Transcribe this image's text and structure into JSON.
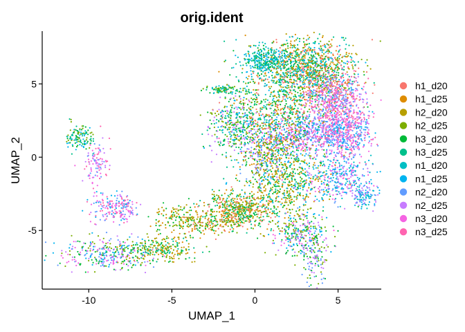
{
  "chart_data": {
    "type": "scatter",
    "title": "orig.ident",
    "xlabel": "UMAP_1",
    "ylabel": "UMAP_2",
    "xlim": [
      -12.8,
      7.6
    ],
    "ylim": [
      -9.0,
      8.6
    ],
    "xticks": [
      -10,
      -5,
      0,
      5
    ],
    "yticks": [
      -5,
      0,
      5
    ],
    "grid": false,
    "legend_position": "right",
    "series": [
      {
        "name": "h1_d20",
        "color": "#F8766D"
      },
      {
        "name": "h1_d25",
        "color": "#DE8C00"
      },
      {
        "name": "h2_d20",
        "color": "#B79F00"
      },
      {
        "name": "h2_d25",
        "color": "#7CAE00"
      },
      {
        "name": "h3_d20",
        "color": "#00BA38"
      },
      {
        "name": "h3_d25",
        "color": "#00C08B"
      },
      {
        "name": "n1_d20",
        "color": "#00BFC4"
      },
      {
        "name": "n1_d25",
        "color": "#00B4F0"
      },
      {
        "name": "n2_d20",
        "color": "#619CFF"
      },
      {
        "name": "n2_d25",
        "color": "#C77CFF"
      },
      {
        "name": "n3_d20",
        "color": "#F564E3"
      },
      {
        "name": "n3_d25",
        "color": "#FF64B0"
      }
    ],
    "clusters": [
      {
        "cx": 3.0,
        "cy": 6.0,
        "sx": 1.5,
        "sy": 1.1,
        "n": 1300,
        "mix": [
          0,
          1,
          2,
          3,
          4,
          5,
          6,
          7
        ]
      },
      {
        "cx": 0.6,
        "cy": 6.6,
        "sx": 0.7,
        "sy": 0.5,
        "n": 260,
        "mix": [
          4,
          5,
          6,
          7
        ]
      },
      {
        "cx": 4.6,
        "cy": 4.0,
        "sx": 1.0,
        "sy": 1.0,
        "n": 600,
        "mix": [
          8,
          9,
          10,
          11,
          0
        ]
      },
      {
        "cx": 5.5,
        "cy": 1.8,
        "sx": 0.8,
        "sy": 1.2,
        "n": 520,
        "mix": [
          8,
          9,
          10,
          11,
          7
        ]
      },
      {
        "cx": 3.0,
        "cy": 1.6,
        "sx": 1.6,
        "sy": 0.7,
        "n": 650,
        "mix": [
          8,
          9,
          10,
          7,
          11
        ]
      },
      {
        "cx": 1.3,
        "cy": 3.0,
        "sx": 1.5,
        "sy": 1.1,
        "n": 500,
        "mix": [
          0,
          1,
          3,
          4,
          5,
          6
        ]
      },
      {
        "cx": -1.2,
        "cy": 2.0,
        "sx": 0.8,
        "sy": 1.1,
        "n": 320,
        "mix": [
          3,
          4,
          5,
          7,
          9
        ]
      },
      {
        "cx": 1.8,
        "cy": -1.5,
        "sx": 1.3,
        "sy": 1.6,
        "n": 700,
        "mix": [
          1,
          2,
          3,
          4,
          5,
          7
        ]
      },
      {
        "cx": 0.6,
        "cy": 0.2,
        "sx": 0.7,
        "sy": 0.9,
        "n": 260,
        "mix": [
          1,
          3,
          4,
          8,
          9
        ]
      },
      {
        "cx": 5.0,
        "cy": -1.5,
        "sx": 1.1,
        "sy": 0.8,
        "n": 320,
        "mix": [
          6,
          7,
          8,
          9,
          10
        ]
      },
      {
        "cx": 6.5,
        "cy": -2.6,
        "sx": 0.5,
        "sy": 0.4,
        "n": 120,
        "mix": [
          6,
          7,
          8,
          9
        ]
      },
      {
        "cx": 2.7,
        "cy": -5.3,
        "sx": 0.8,
        "sy": 0.7,
        "n": 260,
        "mix": [
          3,
          4,
          7,
          9,
          10
        ]
      },
      {
        "cx": 3.5,
        "cy": -6.8,
        "sx": 0.4,
        "sy": 0.9,
        "n": 120,
        "mix": [
          3,
          4,
          8,
          9
        ]
      },
      {
        "cx": -1.0,
        "cy": -3.6,
        "sx": 1.1,
        "sy": 0.6,
        "n": 520,
        "mix": [
          0,
          1,
          2,
          3,
          4,
          5
        ]
      },
      {
        "cx": -4.5,
        "cy": -4.2,
        "sx": 0.9,
        "sy": 0.5,
        "n": 140,
        "mix": [
          1,
          2,
          3,
          4
        ]
      },
      {
        "cx": -5.5,
        "cy": -6.3,
        "sx": 1.1,
        "sy": 0.4,
        "n": 240,
        "mix": [
          1,
          2,
          3,
          4,
          5
        ]
      },
      {
        "cx": -8.4,
        "cy": -3.4,
        "sx": 0.7,
        "sy": 0.5,
        "n": 200,
        "mix": [
          8,
          9,
          10,
          11,
          7
        ]
      },
      {
        "cx": -9.0,
        "cy": -6.6,
        "sx": 1.4,
        "sy": 0.55,
        "n": 330,
        "mix": [
          8,
          9,
          10,
          3,
          4,
          7
        ]
      },
      {
        "cx": -10.5,
        "cy": 1.4,
        "sx": 0.45,
        "sy": 0.45,
        "n": 120,
        "mix": [
          3,
          4,
          5,
          7
        ]
      },
      {
        "cx": -9.5,
        "cy": -0.4,
        "sx": 0.4,
        "sy": 0.8,
        "n": 100,
        "mix": [
          8,
          9,
          10,
          11
        ]
      },
      {
        "cx": -1.8,
        "cy": 4.6,
        "sx": 0.7,
        "sy": 0.15,
        "n": 90,
        "mix": [
          3,
          4,
          5,
          6
        ]
      },
      {
        "cx": -2.5,
        "cy": -4.6,
        "sx": 1.2,
        "sy": 0.35,
        "n": 140,
        "mix": [
          0,
          1,
          3,
          4
        ]
      }
    ]
  }
}
